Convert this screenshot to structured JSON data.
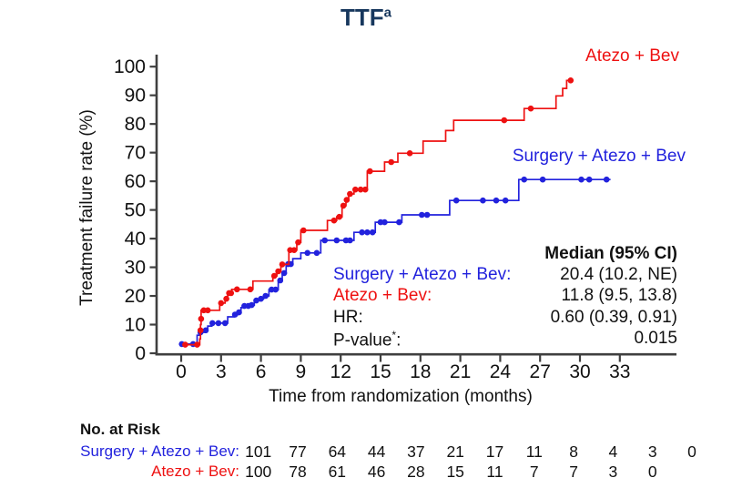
{
  "title": {
    "text": "TTF",
    "sup": "a"
  },
  "colors": {
    "red": "#EE1111",
    "blue": "#2222DD",
    "navy": "#17375D",
    "axis": "#3f3f3f",
    "text": "#111111"
  },
  "legend": {
    "red_label": "Atezo + Bev",
    "blue_label": "Surgery + Atezo + Bev"
  },
  "stats": {
    "header": "Median (95% CI)",
    "rows": [
      {
        "label": "Surgery + Atezo + Bev:",
        "sup": "",
        "suffix": "",
        "value": "20.4 (10.2, NE)",
        "color_key": "blue"
      },
      {
        "label": "Atezo + Bev:",
        "sup": "",
        "suffix": "",
        "value": "11.8 (9.5, 13.8)",
        "color_key": "red"
      },
      {
        "label": "HR:",
        "sup": "",
        "suffix": "",
        "value": "0.60 (0.39, 0.91)",
        "color_key": "text"
      },
      {
        "label": "P-value",
        "sup": "*",
        "suffix": ":",
        "value": "0.015",
        "color_key": "text"
      }
    ]
  },
  "risk_table": {
    "title": "No. at Risk",
    "rows": [
      {
        "label": "Surgery + Atezo + Bev:",
        "color_key": "blue",
        "values": [
          101,
          77,
          64,
          44,
          37,
          21,
          17,
          11,
          8,
          4,
          3,
          0
        ]
      },
      {
        "label": "Atezo + Bev:",
        "color_key": "red",
        "values": [
          100,
          78,
          61,
          46,
          28,
          15,
          11,
          7,
          7,
          3,
          0
        ]
      }
    ]
  },
  "chart_data": {
    "type": "line",
    "subtype": "kaplan-meier-step",
    "title": "TTF (a)",
    "xlabel": "Time from randomization (months)",
    "ylabel": "Treatment failure rate (%)",
    "xlim": [
      0,
      36
    ],
    "ylim": [
      0,
      100
    ],
    "x_ticks": [
      0,
      3,
      6,
      9,
      12,
      15,
      18,
      21,
      24,
      27,
      30,
      33
    ],
    "y_ticks": [
      0,
      10,
      20,
      30,
      40,
      50,
      60,
      70,
      80,
      90,
      100
    ],
    "grid": false,
    "legend_position": "inline-right",
    "series": [
      {
        "name": "Atezo + Bev",
        "color_key": "red",
        "median": "11.8 (9.5, 13.8)",
        "end_month": 29.4,
        "steps": [
          [
            0.2,
            3
          ],
          [
            1.4,
            5
          ],
          [
            1.45,
            10
          ],
          [
            1.5,
            15
          ],
          [
            2.9,
            17.5
          ],
          [
            3.3,
            19
          ],
          [
            3.5,
            21
          ],
          [
            3.8,
            22.3
          ],
          [
            5.4,
            25.2
          ],
          [
            6.9,
            27
          ],
          [
            7.2,
            28.6
          ],
          [
            7.5,
            31
          ],
          [
            8.1,
            36
          ],
          [
            8.7,
            38.7
          ],
          [
            9.0,
            42.9
          ],
          [
            11.0,
            46.3
          ],
          [
            11.7,
            47.6
          ],
          [
            12.1,
            51.5
          ],
          [
            12.4,
            53.5
          ],
          [
            12.6,
            55.6
          ],
          [
            13.0,
            57.1
          ],
          [
            14.0,
            63.5
          ],
          [
            15.3,
            66.7
          ],
          [
            16.3,
            69.8
          ],
          [
            18.2,
            74
          ],
          [
            19.9,
            77.7
          ],
          [
            20.5,
            81.3
          ],
          [
            25.8,
            85.4
          ],
          [
            28.2,
            89.8
          ],
          [
            28.7,
            92.4
          ],
          [
            29.0,
            95.2
          ]
        ],
        "markers": [
          [
            0.3,
            3
          ],
          [
            1.2,
            3
          ],
          [
            1.45,
            8
          ],
          [
            1.5,
            12
          ],
          [
            1.7,
            15
          ],
          [
            2.0,
            15
          ],
          [
            3.0,
            17.5
          ],
          [
            3.4,
            19
          ],
          [
            3.6,
            21
          ],
          [
            3.75,
            21
          ],
          [
            4.2,
            22.3
          ],
          [
            5.2,
            22.3
          ],
          [
            7.0,
            27
          ],
          [
            7.3,
            28.6
          ],
          [
            7.6,
            31
          ],
          [
            8.2,
            36
          ],
          [
            8.5,
            36
          ],
          [
            8.8,
            38.7
          ],
          [
            9.2,
            42.9
          ],
          [
            11.5,
            46.3
          ],
          [
            11.9,
            47.6
          ],
          [
            12.2,
            51.5
          ],
          [
            12.45,
            53.5
          ],
          [
            12.7,
            55.6
          ],
          [
            13.1,
            57.1
          ],
          [
            13.5,
            57.1
          ],
          [
            13.85,
            57.1
          ],
          [
            14.2,
            63.5
          ],
          [
            15.8,
            66.7
          ],
          [
            17.2,
            69.8
          ],
          [
            24.3,
            81.3
          ],
          [
            26.3,
            85.4
          ],
          [
            29.3,
            95.2
          ]
        ]
      },
      {
        "name": "Surgery + Atezo + Bev",
        "color_key": "blue",
        "median": "20.4 (10.2, NE)",
        "end_month": 32.3,
        "steps": [
          [
            0,
            3.2
          ],
          [
            1.2,
            6.3
          ],
          [
            1.4,
            7.3
          ],
          [
            1.8,
            8
          ],
          [
            2.0,
            9.5
          ],
          [
            2.3,
            10.5
          ],
          [
            3.5,
            12.7
          ],
          [
            4.0,
            13.5
          ],
          [
            4.3,
            14.3
          ],
          [
            4.5,
            15.9
          ],
          [
            4.7,
            16.5
          ],
          [
            5.2,
            16.8
          ],
          [
            5.5,
            18.4
          ],
          [
            5.9,
            19
          ],
          [
            6.2,
            20
          ],
          [
            6.6,
            22.2
          ],
          [
            7.3,
            25.4
          ],
          [
            7.6,
            28
          ],
          [
            7.9,
            31.1
          ],
          [
            8.4,
            33
          ],
          [
            9.0,
            35
          ],
          [
            10.5,
            39.4
          ],
          [
            13.0,
            42.2
          ],
          [
            14.6,
            45.7
          ],
          [
            16.6,
            48.3
          ],
          [
            20.2,
            53.3
          ],
          [
            25.4,
            60.6
          ]
        ],
        "markers": [
          [
            0.05,
            3.2
          ],
          [
            0.9,
            3.2
          ],
          [
            1.45,
            7.3
          ],
          [
            1.85,
            8
          ],
          [
            2.35,
            10.5
          ],
          [
            2.8,
            10.5
          ],
          [
            3.3,
            10.5
          ],
          [
            4.05,
            13.5
          ],
          [
            4.35,
            14.3
          ],
          [
            4.75,
            16.5
          ],
          [
            5.05,
            16.5
          ],
          [
            5.3,
            16.8
          ],
          [
            5.65,
            18.4
          ],
          [
            6.0,
            19
          ],
          [
            6.35,
            20
          ],
          [
            6.8,
            22.2
          ],
          [
            7.1,
            22.2
          ],
          [
            7.45,
            25.4
          ],
          [
            7.75,
            28
          ],
          [
            8.05,
            31.1
          ],
          [
            8.25,
            31.1
          ],
          [
            9.5,
            35
          ],
          [
            10.2,
            35
          ],
          [
            10.8,
            39.4
          ],
          [
            11.7,
            39.4
          ],
          [
            12.4,
            39.4
          ],
          [
            12.7,
            39.4
          ],
          [
            13.6,
            42.2
          ],
          [
            14.0,
            42.2
          ],
          [
            14.4,
            42.2
          ],
          [
            15.0,
            45.7
          ],
          [
            15.3,
            45.7
          ],
          [
            16.4,
            45.7
          ],
          [
            18.1,
            48.3
          ],
          [
            18.5,
            48.3
          ],
          [
            20.7,
            53.3
          ],
          [
            22.7,
            53.3
          ],
          [
            23.7,
            53.3
          ],
          [
            24.4,
            53.3
          ],
          [
            25.8,
            60.6
          ],
          [
            27.2,
            60.6
          ],
          [
            30.1,
            60.6
          ],
          [
            30.7,
            60.6
          ],
          [
            32.0,
            60.6
          ]
        ]
      }
    ],
    "annotations": {
      "hr": "0.60 (0.39, 0.91)",
      "p_value": "0.015"
    }
  }
}
